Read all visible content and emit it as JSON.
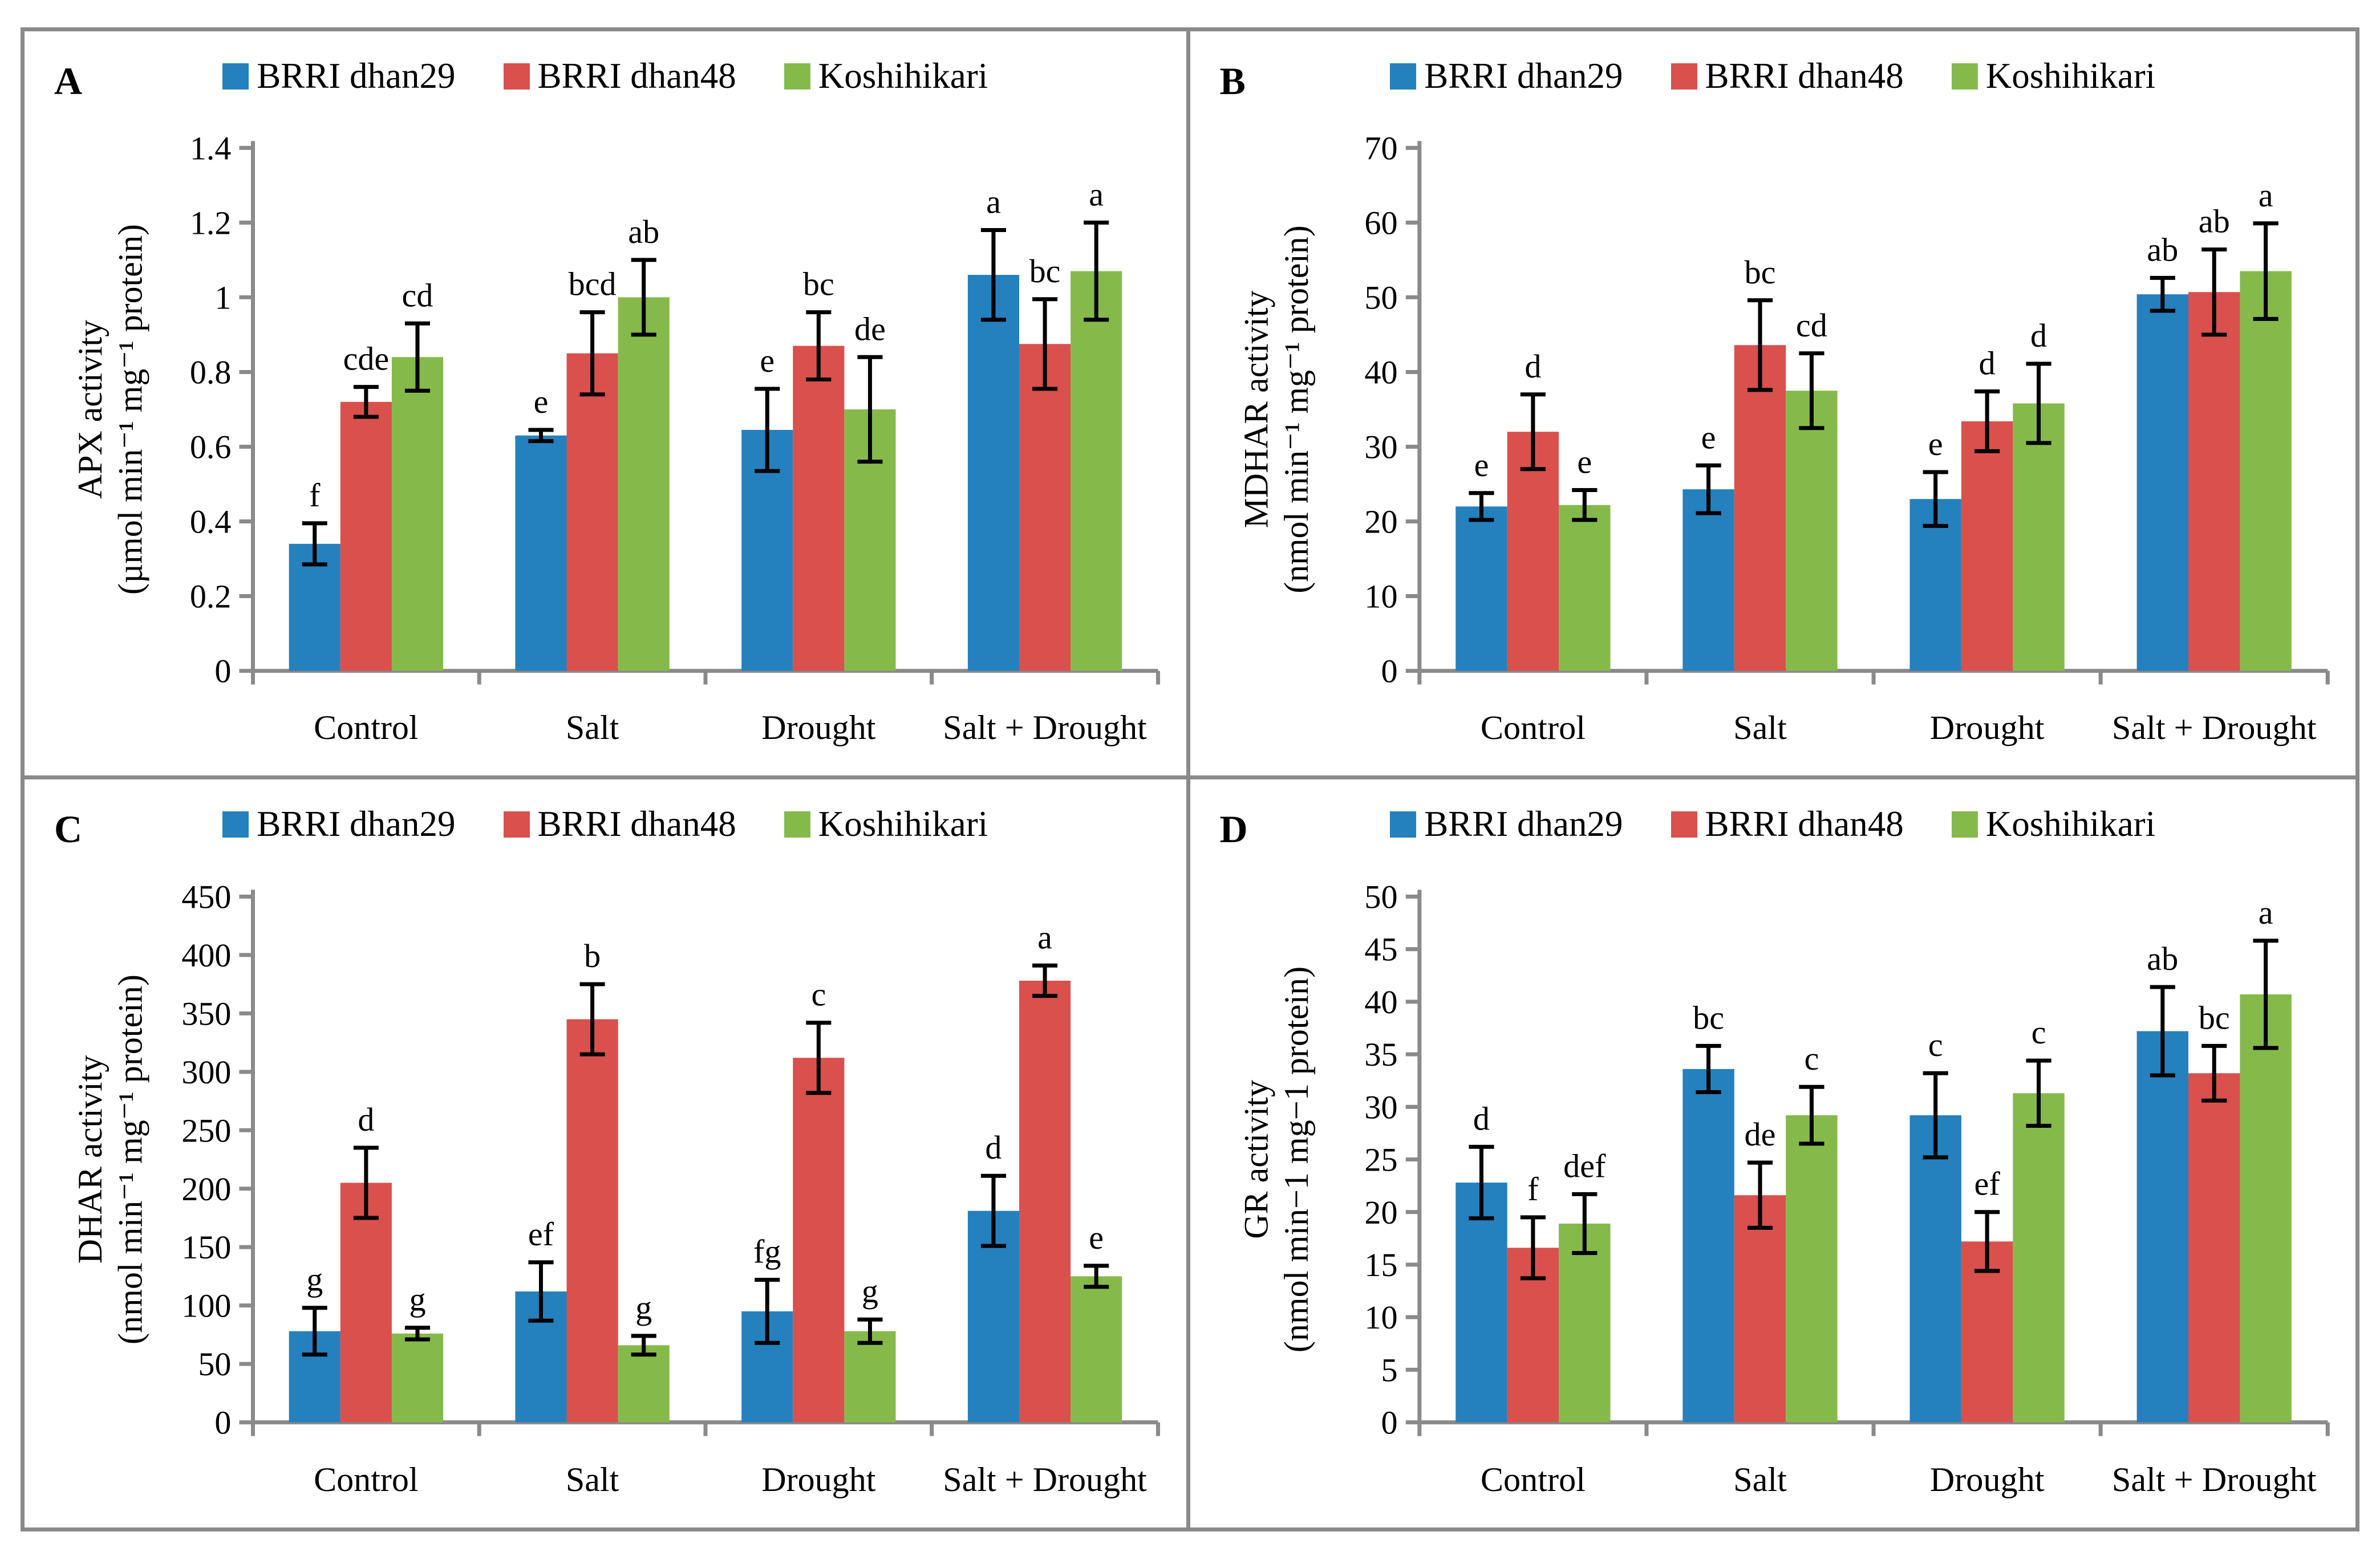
{
  "figure": {
    "series_names": [
      "BRRI dhan29",
      "BRRI dhan48",
      "Koshihikari"
    ],
    "series_colors": [
      "#2580BE",
      "#D9504D",
      "#85BA4B"
    ],
    "axis_color": "#8a8a8a",
    "error_bar_color": "#000000",
    "categories": [
      "Control",
      "Salt",
      "Drought",
      "Salt + Drought"
    ]
  },
  "chart_data": [
    {
      "panel": "A",
      "type": "bar",
      "ylabel_line1": "APX activity",
      "ylabel_line2": "(µmol min⁻¹ mg⁻¹ protein)",
      "ylim": [
        0,
        1.4
      ],
      "ytick_labels": [
        "0",
        "0.2",
        "0.4",
        "0.6",
        "0.8",
        "1",
        "1.2",
        "1.4"
      ],
      "legend_position": "top",
      "grid": false,
      "categories": [
        "Control",
        "Salt",
        "Drought",
        "Salt + Drought"
      ],
      "series": [
        {
          "name": "BRRI dhan29",
          "values": [
            0.34,
            0.63,
            0.645,
            1.06
          ],
          "errors": [
            0.055,
            0.015,
            0.11,
            0.12
          ],
          "letters": [
            "f",
            "e",
            "e",
            "a"
          ]
        },
        {
          "name": "BRRI dhan48",
          "values": [
            0.72,
            0.85,
            0.87,
            0.875
          ],
          "errors": [
            0.04,
            0.11,
            0.09,
            0.12
          ],
          "letters": [
            "cde",
            "bcd",
            "bc",
            "bc"
          ]
        },
        {
          "name": "Koshihikari",
          "values": [
            0.84,
            1.0,
            0.7,
            1.07
          ],
          "errors": [
            0.09,
            0.1,
            0.14,
            0.13
          ],
          "letters": [
            "cd",
            "ab",
            "de",
            "a"
          ]
        }
      ]
    },
    {
      "panel": "B",
      "type": "bar",
      "ylabel_line1": "MDHAR activity",
      "ylabel_line2": "(nmol min⁻¹ mg⁻¹ protein)",
      "ylim": [
        0,
        70
      ],
      "ytick_labels": [
        "0",
        "10",
        "20",
        "30",
        "40",
        "50",
        "60",
        "70"
      ],
      "legend_position": "top",
      "grid": false,
      "categories": [
        "Control",
        "Salt",
        "Drought",
        "Salt + Drought"
      ],
      "series": [
        {
          "name": "BRRI dhan29",
          "values": [
            22,
            24.3,
            23,
            50.4
          ],
          "errors": [
            1.8,
            3.2,
            3.6,
            2.2
          ],
          "letters": [
            "e",
            "e",
            "e",
            "ab"
          ]
        },
        {
          "name": "BRRI dhan48",
          "values": [
            32,
            43.6,
            33.4,
            50.7
          ],
          "errors": [
            5,
            6,
            4,
            5.7
          ],
          "letters": [
            "d",
            "bc",
            "d",
            "ab"
          ]
        },
        {
          "name": "Koshihikari",
          "values": [
            22.2,
            37.5,
            35.8,
            53.5
          ],
          "errors": [
            2,
            5,
            5.3,
            6.4
          ],
          "letters": [
            "e",
            "cd",
            "d",
            "a"
          ]
        }
      ]
    },
    {
      "panel": "C",
      "type": "bar",
      "ylabel_line1": "DHAR activity",
      "ylabel_line2": "(nmol min⁻¹ mg⁻¹ protein)",
      "ylim": [
        0,
        450
      ],
      "ytick_labels": [
        "0",
        "50",
        "100",
        "150",
        "200",
        "250",
        "300",
        "350",
        "400",
        "450"
      ],
      "legend_position": "top",
      "grid": false,
      "categories": [
        "Control",
        "Salt",
        "Drought",
        "Salt + Drought"
      ],
      "series": [
        {
          "name": "BRRI dhan29",
          "values": [
            78,
            112,
            95,
            181
          ],
          "errors": [
            20,
            25,
            27,
            30
          ],
          "letters": [
            "g",
            "ef",
            "fg",
            "d"
          ]
        },
        {
          "name": "BRRI dhan48",
          "values": [
            205,
            345,
            312,
            378
          ],
          "errors": [
            30,
            30,
            30,
            13
          ],
          "letters": [
            "d",
            "b",
            "c",
            "a"
          ]
        },
        {
          "name": "Koshihikari",
          "values": [
            76,
            66,
            78,
            125
          ],
          "errors": [
            5,
            8,
            10,
            9
          ],
          "letters": [
            "g",
            "g",
            "g",
            "e"
          ]
        }
      ]
    },
    {
      "panel": "D",
      "type": "bar",
      "ylabel_line1": "GR activity",
      "ylabel_line2": "(nmol min−1 mg−1 protein)",
      "ylim": [
        0,
        50
      ],
      "ytick_labels": [
        "0",
        "5",
        "10",
        "15",
        "20",
        "25",
        "30",
        "35",
        "40",
        "45",
        "50"
      ],
      "legend_position": "top",
      "grid": false,
      "categories": [
        "Control",
        "Salt",
        "Drought",
        "Salt + Drought"
      ],
      "series": [
        {
          "name": "BRRI dhan29",
          "values": [
            22.8,
            33.6,
            29.2,
            37.2
          ],
          "errors": [
            3.4,
            2.2,
            4.0,
            4.2
          ],
          "letters": [
            "d",
            "bc",
            "c",
            "ab"
          ]
        },
        {
          "name": "BRRI dhan48",
          "values": [
            16.6,
            21.6,
            17.2,
            33.2
          ],
          "errors": [
            2.9,
            3.1,
            2.8,
            2.6
          ],
          "letters": [
            "f",
            "de",
            "ef",
            "bc"
          ]
        },
        {
          "name": "Koshihikari",
          "values": [
            18.9,
            29.2,
            31.3,
            40.7
          ],
          "errors": [
            2.8,
            2.7,
            3.1,
            5.1
          ],
          "letters": [
            "def",
            "c",
            "c",
            "a"
          ]
        }
      ]
    }
  ]
}
